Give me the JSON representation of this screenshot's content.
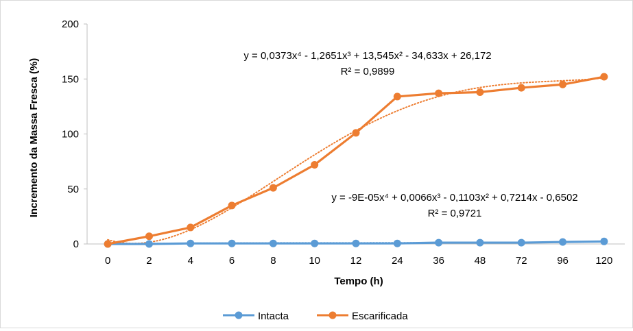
{
  "chart_data": {
    "type": "line",
    "title": "",
    "xlabel": "Tempo (h)",
    "ylabel": "Incremento da Massa Fresca (%)",
    "categories": [
      "0",
      "2",
      "4",
      "6",
      "8",
      "10",
      "12",
      "24",
      "36",
      "48",
      "72",
      "96",
      "120"
    ],
    "ylim": [
      0,
      200
    ],
    "yticks": [
      "0",
      "50",
      "100",
      "150",
      "200"
    ],
    "grid": false,
    "legend_position": "bottom",
    "series": [
      {
        "name": "Intacta",
        "color": "#5B9BD5",
        "values": [
          0,
          0,
          0.5,
          0.5,
          0.5,
          0.5,
          0.5,
          0.5,
          1.2,
          1.2,
          1.2,
          1.8,
          2.3
        ],
        "trendline": {
          "equation": "y = -9E-05x⁴ + 0,0066x³ - 0,1103x² + 0,7214x - 0,6502",
          "r2": "R² = 0,9721",
          "coefficients": [
            -9e-05,
            0.0066,
            -0.1103,
            0.7214,
            -0.6502
          ]
        }
      },
      {
        "name": "Escarificada",
        "color": "#ED7D31",
        "values": [
          0,
          7,
          15,
          35,
          51,
          72,
          101,
          134,
          137,
          138,
          142,
          145,
          152
        ],
        "trendline": {
          "equation": "y = 0,0373x⁴ - 1,2651x³ + 13,545x² - 34,633x + 26,172",
          "r2": "R² = 0,9899",
          "coefficients": [
            0.0373,
            -1.2651,
            13.545,
            -34.633,
            26.172
          ]
        }
      }
    ]
  }
}
